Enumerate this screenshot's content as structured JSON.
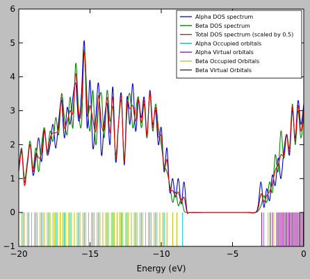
{
  "chart_data": {
    "type": "line",
    "title": "",
    "xlabel": "Energy (eV)",
    "ylabel": "",
    "xlim": [
      -20,
      0
    ],
    "ylim": [
      -1,
      6
    ],
    "xticks": [
      "-20",
      "-15",
      "-10",
      "-5",
      "0"
    ],
    "yticks": [
      "-1",
      "0",
      "1",
      "2",
      "3",
      "4",
      "5",
      "6"
    ],
    "grid": false,
    "legend_position": "top-right",
    "legend": [
      {
        "label": "Alpha DOS spectrum",
        "color": "#0000cc"
      },
      {
        "label": "Beta DOS spectrum",
        "color": "#008800"
      },
      {
        "label": "Total DOS spectrum (scaled by 0.5)",
        "color": "#dd0000"
      },
      {
        "label": "Alpha Occupied orbitals",
        "color": "#00bfbf"
      },
      {
        "label": "Alpha Virtual orbitals",
        "color": "#bf00bf"
      },
      {
        "label": "Beta Occupied Orbitals",
        "color": "#bfbf00"
      },
      {
        "label": "Beta Virtual Orbitals",
        "color": "#333333"
      }
    ],
    "series": [
      {
        "color": "#0000cc",
        "x": [
          -20,
          -19.8,
          -19.6,
          -19.4,
          -19.2,
          -19,
          -18.8,
          -18.6,
          -18.4,
          -18.2,
          -18,
          -17.8,
          -17.6,
          -17.4,
          -17.2,
          -17,
          -16.8,
          -16.6,
          -16.4,
          -16.2,
          -16,
          -15.8,
          -15.6,
          -15.4,
          -15.2,
          -15,
          -14.8,
          -14.6,
          -14.4,
          -14.2,
          -14,
          -13.8,
          -13.6,
          -13.4,
          -13.2,
          -13,
          -12.8,
          -12.6,
          -12.4,
          -12.2,
          -12,
          -11.8,
          -11.6,
          -11.4,
          -11.2,
          -11,
          -10.8,
          -10.6,
          -10.4,
          -10.2,
          -10,
          -9.8,
          -9.6,
          -9.4,
          -9.2,
          -9,
          -8.8,
          -8.6,
          -8.4,
          -8.2,
          -8,
          -7,
          -6,
          -5,
          -4,
          -3.4,
          -3.2,
          -3,
          -2.8,
          -2.6,
          -2.4,
          -2.2,
          -2,
          -1.8,
          -1.6,
          -1.4,
          -1.2,
          -1,
          -0.8,
          -0.6,
          -0.4,
          -0.2,
          0
        ],
        "y": [
          1.2,
          1.8,
          0.9,
          1.4,
          2.0,
          1.1,
          1.6,
          2.2,
          1.5,
          2.4,
          1.7,
          2.0,
          2.6,
          1.9,
          2.7,
          3.3,
          2.2,
          3.1,
          2.6,
          3.4,
          3.8,
          2.7,
          3.5,
          5.05,
          2.5,
          3.9,
          1.9,
          2.8,
          3.8,
          1.7,
          2.7,
          3.2,
          2.0,
          3.7,
          1.5,
          2.6,
          3.5,
          1.4,
          3.4,
          2.6,
          3.8,
          2.4,
          3.3,
          2.8,
          3.4,
          2.3,
          3.6,
          2.6,
          3.0,
          2.0,
          2.5,
          1.2,
          1.9,
          0.6,
          1.0,
          0.45,
          1.0,
          0.25,
          0.9,
          0.05,
          0.0,
          0.0,
          0.0,
          0.0,
          0.0,
          0.0,
          0.2,
          0.9,
          0.15,
          0.7,
          0.35,
          1.1,
          0.8,
          1.6,
          1.0,
          1.8,
          2.3,
          1.7,
          3.0,
          2.2,
          3.3,
          2.6,
          3.2
        ]
      },
      {
        "color": "#008800",
        "x": [
          -20,
          -19.8,
          -19.6,
          -19.4,
          -19.2,
          -19,
          -18.8,
          -18.6,
          -18.4,
          -18.2,
          -18,
          -17.8,
          -17.6,
          -17.4,
          -17.2,
          -17,
          -16.8,
          -16.6,
          -16.4,
          -16.2,
          -16,
          -15.8,
          -15.6,
          -15.4,
          -15.2,
          -15,
          -14.8,
          -14.6,
          -14.4,
          -14.2,
          -14,
          -13.8,
          -13.6,
          -13.4,
          -13.2,
          -13,
          -12.8,
          -12.6,
          -12.4,
          -12.2,
          -12,
          -11.8,
          -11.6,
          -11.4,
          -11.2,
          -11,
          -10.8,
          -10.6,
          -10.4,
          -10.2,
          -10,
          -9.8,
          -9.6,
          -9.4,
          -9.2,
          -9,
          -8.8,
          -8.6,
          -8.4,
          -8.2,
          -8,
          -7,
          -6,
          -5,
          -4,
          -3.4,
          -3.2,
          -3,
          -2.8,
          -2.6,
          -2.4,
          -2.2,
          -2,
          -1.8,
          -1.6,
          -1.4,
          -1.2,
          -1,
          -0.8,
          -0.6,
          -0.4,
          -0.2,
          0
        ],
        "y": [
          1.3,
          1.9,
          1.0,
          1.5,
          2.1,
          1.3,
          1.9,
          1.2,
          2.0,
          2.5,
          1.8,
          2.4,
          2.1,
          2.8,
          2.3,
          3.5,
          2.8,
          2.3,
          3.4,
          2.5,
          4.4,
          3.0,
          2.6,
          4.8,
          3.3,
          2.4,
          3.6,
          2.0,
          3.1,
          3.5,
          2.2,
          3.6,
          2.7,
          3.1,
          1.7,
          2.6,
          3.3,
          1.6,
          3.0,
          3.5,
          2.5,
          3.0,
          3.4,
          2.5,
          3.2,
          2.2,
          3.5,
          2.4,
          3.2,
          2.5,
          2.0,
          1.4,
          1.2,
          0.8,
          0.3,
          0.6,
          0.2,
          0.4,
          0.05,
          0.0,
          0.0,
          0.0,
          0.0,
          0.0,
          0.0,
          0.0,
          0.05,
          0.2,
          0.5,
          0.3,
          0.9,
          0.6,
          1.7,
          1.2,
          2.4,
          1.6,
          2.3,
          1.9,
          3.2,
          2.0,
          3.0,
          2.2,
          2.9
        ]
      },
      {
        "color": "#dd0000",
        "x": [
          -20,
          -19.8,
          -19.6,
          -19.4,
          -19.2,
          -19,
          -18.8,
          -18.6,
          -18.4,
          -18.2,
          -18,
          -17.8,
          -17.6,
          -17.4,
          -17.2,
          -17,
          -16.8,
          -16.6,
          -16.4,
          -16.2,
          -16,
          -15.8,
          -15.6,
          -15.4,
          -15.2,
          -15,
          -14.8,
          -14.6,
          -14.4,
          -14.2,
          -14,
          -13.8,
          -13.6,
          -13.4,
          -13.2,
          -13,
          -12.8,
          -12.6,
          -12.4,
          -12.2,
          -12,
          -11.8,
          -11.6,
          -11.4,
          -11.2,
          -11,
          -10.8,
          -10.6,
          -10.4,
          -10.2,
          -10,
          -9.8,
          -9.6,
          -9.4,
          -9.2,
          -9,
          -8.8,
          -8.6,
          -8.4,
          -8.2,
          -8,
          -7,
          -6,
          -5,
          -4,
          -3.4,
          -3.2,
          -3,
          -2.8,
          -2.6,
          -2.4,
          -2.2,
          -2,
          -1.8,
          -1.6,
          -1.4,
          -1.2,
          -1,
          -0.8,
          -0.6,
          -0.4,
          -0.2,
          0
        ],
        "y": [
          1.25,
          1.85,
          0.8,
          1.45,
          2.0,
          1.2,
          1.75,
          1.6,
          1.75,
          2.45,
          1.75,
          2.2,
          2.35,
          2.35,
          2.5,
          3.4,
          2.5,
          2.7,
          3.0,
          2.95,
          4.1,
          2.85,
          3.05,
          4.75,
          2.9,
          3.15,
          2.75,
          2.4,
          3.45,
          2.6,
          2.45,
          3.4,
          2.35,
          3.4,
          1.6,
          2.6,
          3.4,
          1.5,
          3.2,
          3.05,
          3.15,
          2.7,
          3.35,
          2.65,
          3.3,
          2.25,
          3.55,
          2.5,
          3.1,
          2.25,
          2.25,
          1.3,
          1.55,
          0.7,
          0.65,
          0.5,
          0.6,
          0.3,
          0.45,
          0.02,
          0.0,
          0.0,
          0.0,
          0.0,
          0.0,
          0.0,
          0.12,
          0.55,
          0.32,
          0.5,
          0.62,
          0.85,
          1.25,
          1.4,
          1.7,
          1.7,
          2.3,
          1.8,
          3.1,
          2.1,
          3.15,
          2.4,
          3.05
        ]
      }
    ],
    "orbital_lines": {
      "ymin": -1,
      "ymax": 0,
      "sets": [
        {
          "label": "Beta Occupied Orbitals",
          "color": "#bfbf00",
          "x": [
            -19.8,
            -19.6,
            -19.4,
            -19.1,
            -18.9,
            -18.7,
            -18.5,
            -18.3,
            -18.2,
            -18.0,
            -17.8,
            -17.6,
            -17.5,
            -17.3,
            -17.1,
            -16.9,
            -16.7,
            -16.5,
            -16.3,
            -16.1,
            -15.9,
            -15.7,
            -15.5,
            -15.3,
            -15.1,
            -14.9,
            -14.7,
            -14.5,
            -14.3,
            -14.1,
            -13.9,
            -13.7,
            -13.5,
            -13.3,
            -13.1,
            -12.9,
            -12.7,
            -12.5,
            -12.3,
            -12.1,
            -11.9,
            -11.7,
            -11.5,
            -11.3,
            -11.1,
            -10.9,
            -10.7,
            -10.5,
            -10.3,
            -10.1,
            -9.9,
            -9.6,
            -9.2,
            -8.9,
            -2.5,
            -2.1
          ]
        },
        {
          "label": "Alpha Occupied orbitals",
          "color": "#00bfbf",
          "x": [
            -19.7,
            -19.3,
            -18.8,
            -18.4,
            -17.9,
            -17.4,
            -16.8,
            -16.4,
            -15.8,
            -15.4,
            -14.8,
            -14.4,
            -13.8,
            -13.4,
            -12.8,
            -12.4,
            -11.8,
            -11.4,
            -10.8,
            -10.4,
            -9.8,
            -8.5,
            -2.8
          ]
        },
        {
          "label": "Alpha Virtual orbitals",
          "color": "#bf00bf",
          "x": [
            -2.95,
            -2.2,
            -1.9,
            -1.7,
            -1.5,
            -1.3,
            -1.1,
            -0.9,
            -0.7,
            -0.5,
            -0.3,
            -0.15
          ]
        },
        {
          "label": "Beta Virtual Orbitals",
          "color": "#333333",
          "x": [
            -2.35,
            -1.8,
            -1.6,
            -1.4,
            -1.2,
            -1.0,
            -0.8,
            -0.6,
            -0.4,
            -0.25,
            -0.05
          ]
        }
      ]
    }
  }
}
